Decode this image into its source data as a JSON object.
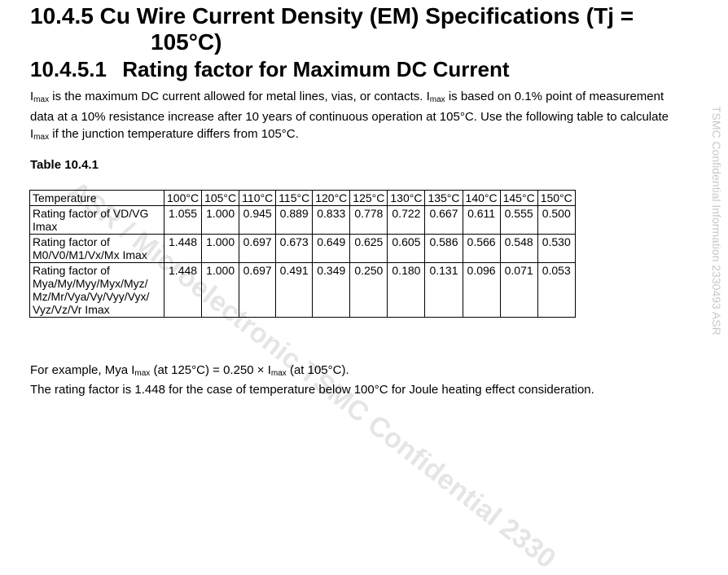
{
  "heading": {
    "line1": "10.4.5 Cu Wire Current Density (EM) Specifications (Tj =",
    "line2": "105°C)"
  },
  "subheading": {
    "number": "10.4.5.1",
    "title": "Rating factor for Maximum DC Current"
  },
  "paragraph": {
    "s1": "I",
    "s1sub": "max",
    "s2": " is the maximum DC current allowed for metal lines, vias, or contacts. I",
    "s2sub": "max",
    "s3": " is based on 0.1% point of measurement data at a 10% resistance increase after 10 years of continuous operation at 105°C. Use the following table to calculate I",
    "s3sub": "max",
    "s4": " if the junction temperature differs from 105°C."
  },
  "table_caption": "Table 10.4.1",
  "table": {
    "header_label": "Temperature",
    "temperatures": [
      "100°C",
      "105°C",
      "110°C",
      "115°C",
      "120°C",
      "125°C",
      "130°C",
      "135°C",
      "140°C",
      "145°C",
      "150°C"
    ],
    "rows": [
      {
        "label_lines": [
          "Rating factor of VD/VG",
          "Imax"
        ],
        "values": [
          "1.055",
          "1.000",
          "0.945",
          "0.889",
          "0.833",
          "0.778",
          "0.722",
          "0.667",
          "0.611",
          "0.555",
          "0.500"
        ]
      },
      {
        "label_lines": [
          "Rating factor of",
          "M0/V0/M1/Vx/Mx Imax"
        ],
        "values": [
          "1.448",
          "1.000",
          "0.697",
          "0.673",
          "0.649",
          "0.625",
          "0.605",
          "0.586",
          "0.566",
          "0.548",
          "0.530"
        ]
      },
      {
        "label_lines": [
          "Rating factor of",
          "Mya/My/Myy/Myx/Myz/",
          "Mz/Mr/Vya/Vy/Vyy/Vyx/",
          "Vyz/Vz/Vr Imax"
        ],
        "values": [
          "1.448",
          "1.000",
          "0.697",
          "0.491",
          "0.349",
          "0.250",
          "0.180",
          "0.131",
          "0.096",
          "0.071",
          "0.053"
        ]
      }
    ]
  },
  "example": {
    "p1": "For example, Mya I",
    "sub1": "max",
    "p2": " (at 125°C) = 0.250 × I",
    "sub2": "max",
    "p3": " (at 105°C).",
    "line2": "The rating factor is 1.448 for the case of temperature below 100°C for Joule heating effect consideration."
  },
  "watermark_side": "TSMC Confidential Information 2330493 ASR",
  "watermark_diag": "ASR / Microelectronic  TSMC Confidential  2330"
}
